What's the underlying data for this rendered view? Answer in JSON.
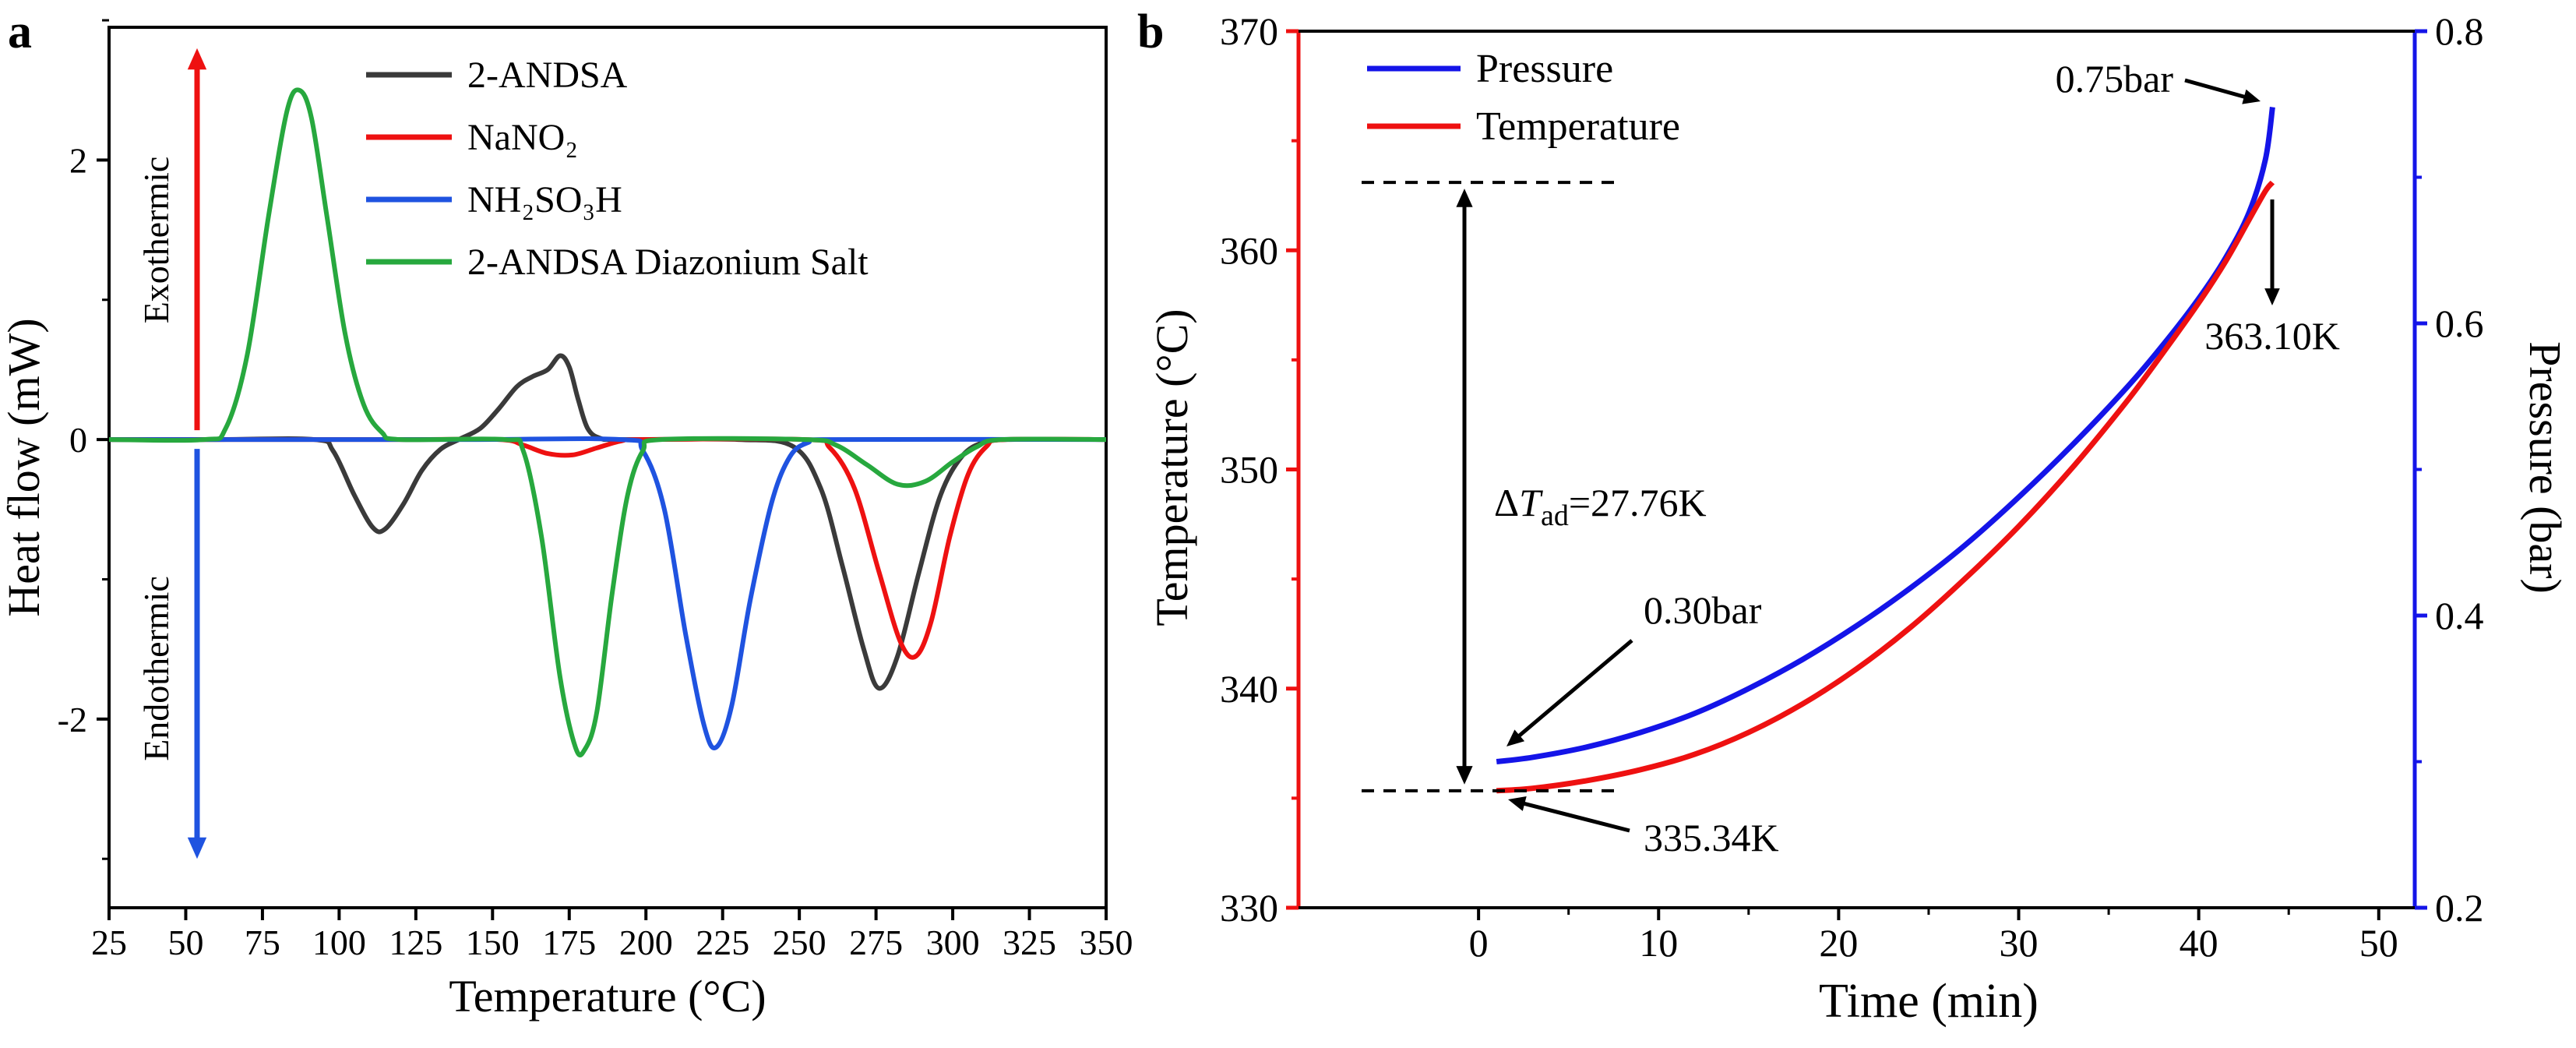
{
  "chart_data": [
    {
      "type": "line",
      "panel_label": "a",
      "xlabel": "Temperature (°C)",
      "ylabel": "Heat flow (mW)",
      "xlim": [
        25,
        350
      ],
      "ylim": [
        -3.35,
        2.95
      ],
      "xticks": [
        25,
        50,
        75,
        100,
        125,
        150,
        175,
        200,
        225,
        250,
        275,
        300,
        325,
        350
      ],
      "yticks": [
        -2,
        0,
        2
      ],
      "yminorticks": [
        -3,
        -1,
        1,
        3
      ],
      "exothermic": {
        "label": "Exothermic",
        "color": "#ee1111"
      },
      "endothermic": {
        "label": "Endothermic",
        "color": "#1f53e0"
      },
      "legend": [
        {
          "id": "2-andsa",
          "label": "2-ANDSA",
          "color": "#3a3a3a"
        },
        {
          "id": "nano2",
          "label": "NaNO₂",
          "color": "#ee1111"
        },
        {
          "id": "nh2so3h",
          "label": "NH₂SO₃H",
          "color": "#1f53e0"
        },
        {
          "id": "2-andsa-diazonium-salt",
          "label": "2-ANDSA Diazonium Salt",
          "color": "#27a83e"
        }
      ],
      "series": [
        {
          "id": "2-andsa",
          "name": "2-ANDSA",
          "color": "#3a3a3a",
          "points": [
            [
              25,
              0
            ],
            [
              60,
              0
            ],
            [
              92,
              0
            ],
            [
              98,
              -0.08
            ],
            [
              105,
              -0.4
            ],
            [
              111,
              -0.63
            ],
            [
              115,
              -0.64
            ],
            [
              121,
              -0.46
            ],
            [
              127,
              -0.22
            ],
            [
              133,
              -0.07
            ],
            [
              139,
              0.0
            ],
            [
              146,
              0.08
            ],
            [
              152,
              0.22
            ],
            [
              158,
              0.38
            ],
            [
              163,
              0.45
            ],
            [
              168,
              0.5
            ],
            [
              172,
              0.6
            ],
            [
              175,
              0.52
            ],
            [
              178,
              0.28
            ],
            [
              181,
              0.08
            ],
            [
              185,
              0.01
            ],
            [
              192,
              0
            ],
            [
              230,
              0
            ],
            [
              248,
              -0.05
            ],
            [
              257,
              -0.35
            ],
            [
              264,
              -0.9
            ],
            [
              271,
              -1.5
            ],
            [
              276,
              -1.78
            ],
            [
              282,
              -1.55
            ],
            [
              289,
              -0.95
            ],
            [
              296,
              -0.4
            ],
            [
              303,
              -0.12
            ],
            [
              310,
              -0.02
            ],
            [
              318,
              0
            ],
            [
              350,
              0
            ]
          ]
        },
        {
          "id": "nano2",
          "name": "NaNO₂",
          "color": "#ee1111",
          "points": [
            [
              25,
              0
            ],
            [
              120,
              0
            ],
            [
              152,
              0
            ],
            [
              160,
              -0.04
            ],
            [
              168,
              -0.1
            ],
            [
              176,
              -0.11
            ],
            [
              184,
              -0.06
            ],
            [
              192,
              -0.01
            ],
            [
              200,
              0
            ],
            [
              252,
              0
            ],
            [
              260,
              -0.06
            ],
            [
              268,
              -0.35
            ],
            [
              276,
              -0.95
            ],
            [
              283,
              -1.45
            ],
            [
              288,
              -1.55
            ],
            [
              293,
              -1.3
            ],
            [
              299,
              -0.7
            ],
            [
              305,
              -0.25
            ],
            [
              311,
              -0.05
            ],
            [
              317,
              0
            ],
            [
              350,
              0
            ]
          ]
        },
        {
          "id": "nh2so3h",
          "name": "NH₂SO₃H",
          "color": "#1f53e0",
          "points": [
            [
              25,
              0
            ],
            [
              140,
              0
            ],
            [
              192,
              0
            ],
            [
              199,
              -0.08
            ],
            [
              206,
              -0.5
            ],
            [
              213,
              -1.4
            ],
            [
              219,
              -2.05
            ],
            [
              223,
              -2.2
            ],
            [
              228,
              -1.9
            ],
            [
              234,
              -1.15
            ],
            [
              241,
              -0.45
            ],
            [
              247,
              -0.12
            ],
            [
              253,
              -0.02
            ],
            [
              260,
              0
            ],
            [
              350,
              0
            ]
          ]
        },
        {
          "id": "2-andsa-diazonium-salt",
          "name": "2-ANDSA Diazonium Salt",
          "color": "#27a83e",
          "points": [
            [
              25,
              0
            ],
            [
              56,
              0
            ],
            [
              63,
              0.08
            ],
            [
              70,
              0.6
            ],
            [
              77,
              1.6
            ],
            [
              83,
              2.35
            ],
            [
              87,
              2.5
            ],
            [
              91,
              2.3
            ],
            [
              96,
              1.6
            ],
            [
              102,
              0.75
            ],
            [
              108,
              0.25
            ],
            [
              114,
              0.05
            ],
            [
              120,
              0
            ],
            [
              154,
              0
            ],
            [
              160,
              -0.08
            ],
            [
              166,
              -0.7
            ],
            [
              172,
              -1.7
            ],
            [
              177,
              -2.2
            ],
            [
              180,
              -2.22
            ],
            [
              184,
              -1.95
            ],
            [
              189,
              -1.1
            ],
            [
              194,
              -0.4
            ],
            [
              199,
              -0.08
            ],
            [
              205,
              0
            ],
            [
              252,
              0
            ],
            [
              262,
              -0.04
            ],
            [
              272,
              -0.18
            ],
            [
              282,
              -0.32
            ],
            [
              291,
              -0.3
            ],
            [
              300,
              -0.16
            ],
            [
              308,
              -0.05
            ],
            [
              316,
              0
            ],
            [
              350,
              0
            ]
          ]
        }
      ]
    },
    {
      "type": "line",
      "panel_label": "b",
      "xlabel": "Time (min)",
      "ylabel_left": "Temperature (°C)",
      "ylabel_right": "Pressure (bar)",
      "xlim": [
        -10,
        52
      ],
      "ylim_left": [
        330,
        370
      ],
      "ylim_right": [
        0.2,
        0.8
      ],
      "xticks": [
        0,
        10,
        20,
        30,
        40,
        50
      ],
      "xminorticks": [
        5,
        15,
        25,
        35,
        45
      ],
      "yticks_left": [
        330,
        340,
        350,
        360,
        370
      ],
      "yminor_left": [
        335,
        345,
        355,
        365
      ],
      "yticks_right": [
        "0.2",
        "0.4",
        "0.6",
        "0.8"
      ],
      "yminor_right": [
        0.3,
        0.5,
        0.7
      ],
      "axis_color_left": "#ee1111",
      "axis_color_right": "#1414e8",
      "legend": [
        {
          "id": "pressure",
          "label": "Pressure",
          "color": "#1414e8"
        },
        {
          "id": "temperature",
          "label": "Temperature",
          "color": "#ee1111"
        }
      ],
      "series": [
        {
          "id": "pressure",
          "name": "Pressure",
          "axis": "right",
          "color": "#1414e8",
          "points": [
            [
              1,
              0.3
            ],
            [
              3,
              0.303
            ],
            [
              6,
              0.31
            ],
            [
              9,
              0.32
            ],
            [
              12,
              0.333
            ],
            [
              15,
              0.35
            ],
            [
              18,
              0.37
            ],
            [
              21,
              0.393
            ],
            [
              24,
              0.419
            ],
            [
              27,
              0.448
            ],
            [
              30,
              0.481
            ],
            [
              33,
              0.517
            ],
            [
              36,
              0.556
            ],
            [
              38,
              0.585
            ],
            [
              40,
              0.617
            ],
            [
              41.5,
              0.645
            ],
            [
              42.8,
              0.676
            ],
            [
              43.7,
              0.712
            ],
            [
              44.1,
              0.748
            ]
          ]
        },
        {
          "id": "temperature",
          "name": "Temperature",
          "axis": "left",
          "color": "#ee1111",
          "points": [
            [
              1,
              335.34
            ],
            [
              3,
              335.45
            ],
            [
              6,
              335.8
            ],
            [
              9,
              336.3
            ],
            [
              12,
              337.0
            ],
            [
              15,
              338.0
            ],
            [
              18,
              339.3
            ],
            [
              21,
              340.9
            ],
            [
              24,
              342.8
            ],
            [
              27,
              345.0
            ],
            [
              30,
              347.4
            ],
            [
              33,
              350.1
            ],
            [
              36,
              353.1
            ],
            [
              38,
              355.3
            ],
            [
              40,
              357.6
            ],
            [
              41.5,
              359.5
            ],
            [
              42.8,
              361.4
            ],
            [
              43.7,
              362.7
            ],
            [
              44.1,
              363.1
            ]
          ]
        }
      ],
      "annotations": {
        "p_end": "0.75bar",
        "t_end": "363.10K",
        "p_start": "0.30bar",
        "t_start": "335.34K",
        "delta": {
          "d": "Δ",
          "t": "T",
          "sub": "ad",
          "rest": "=27.76K"
        },
        "delta_value_K": 27.76,
        "dashed_top": 363.1,
        "dashed_bottom": 335.34
      }
    }
  ]
}
